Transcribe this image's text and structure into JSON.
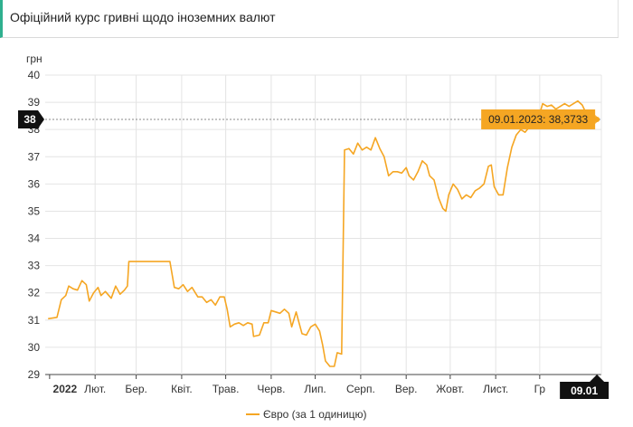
{
  "header": {
    "title": "Офіційний курс гривні щодо іноземних валют"
  },
  "chart_data": {
    "type": "line",
    "ylabel": "грн",
    "ylim": [
      29,
      40
    ],
    "y_ticks": [
      "29",
      "30",
      "31",
      "32",
      "33",
      "34",
      "35",
      "36",
      "37",
      "38",
      "39",
      "40"
    ],
    "x_ticks": [
      {
        "label": "2022",
        "x": "2022-01-01",
        "bold": true
      },
      {
        "label": "Лют.",
        "x": "2022-02-01"
      },
      {
        "label": "Бер.",
        "x": "2022-03-01"
      },
      {
        "label": "Квіт.",
        "x": "2022-04-01"
      },
      {
        "label": "Трав.",
        "x": "2022-05-01"
      },
      {
        "label": "Черв.",
        "x": "2022-06-01"
      },
      {
        "label": "Лип.",
        "x": "2022-07-01"
      },
      {
        "label": "Серп.",
        "x": "2022-08-01"
      },
      {
        "label": "Вер.",
        "x": "2022-09-01"
      },
      {
        "label": "Жовт.",
        "x": "2022-10-01"
      },
      {
        "label": "Лист.",
        "x": "2022-11-01"
      },
      {
        "label": "Гр",
        "x": "2022-12-01"
      }
    ],
    "xlim": [
      "2021-12-29",
      "2023-01-12"
    ],
    "grid": true,
    "legend": "bottom",
    "color": "#f5a623",
    "series": [
      {
        "name": "Євро (за 1 одиницю)",
        "points": [
          [
            "2021-12-31",
            31.05
          ],
          [
            "2022-01-06",
            31.1
          ],
          [
            "2022-01-09",
            31.75
          ],
          [
            "2022-01-12",
            31.9
          ],
          [
            "2022-01-14",
            32.25
          ],
          [
            "2022-01-17",
            32.15
          ],
          [
            "2022-01-20",
            32.1
          ],
          [
            "2022-01-23",
            32.45
          ],
          [
            "2022-01-26",
            32.3
          ],
          [
            "2022-01-28",
            31.7
          ],
          [
            "2022-01-31",
            32.0
          ],
          [
            "2022-02-03",
            32.2
          ],
          [
            "2022-02-05",
            31.9
          ],
          [
            "2022-02-08",
            32.05
          ],
          [
            "2022-02-12",
            31.8
          ],
          [
            "2022-02-15",
            32.25
          ],
          [
            "2022-02-18",
            31.95
          ],
          [
            "2022-02-21",
            32.1
          ],
          [
            "2022-02-23",
            32.25
          ],
          [
            "2022-02-24",
            33.15
          ],
          [
            "2022-03-10",
            33.15
          ],
          [
            "2022-03-24",
            33.15
          ],
          [
            "2022-03-27",
            32.2
          ],
          [
            "2022-03-30",
            32.15
          ],
          [
            "2022-04-02",
            32.3
          ],
          [
            "2022-04-05",
            32.05
          ],
          [
            "2022-04-08",
            32.2
          ],
          [
            "2022-04-12",
            31.85
          ],
          [
            "2022-04-15",
            31.85
          ],
          [
            "2022-04-18",
            31.65
          ],
          [
            "2022-04-21",
            31.75
          ],
          [
            "2022-04-24",
            31.55
          ],
          [
            "2022-04-27",
            31.85
          ],
          [
            "2022-04-30",
            31.85
          ],
          [
            "2022-05-02",
            31.4
          ],
          [
            "2022-05-04",
            30.75
          ],
          [
            "2022-05-07",
            30.85
          ],
          [
            "2022-05-10",
            30.9
          ],
          [
            "2022-05-13",
            30.8
          ],
          [
            "2022-05-16",
            30.9
          ],
          [
            "2022-05-19",
            30.85
          ],
          [
            "2022-05-20",
            30.4
          ],
          [
            "2022-05-24",
            30.45
          ],
          [
            "2022-05-27",
            30.9
          ],
          [
            "2022-05-30",
            30.9
          ],
          [
            "2022-06-01",
            31.35
          ],
          [
            "2022-06-04",
            31.3
          ],
          [
            "2022-06-07",
            31.25
          ],
          [
            "2022-06-10",
            31.4
          ],
          [
            "2022-06-13",
            31.25
          ],
          [
            "2022-06-15",
            30.75
          ],
          [
            "2022-06-18",
            31.3
          ],
          [
            "2022-06-20",
            30.9
          ],
          [
            "2022-06-22",
            30.5
          ],
          [
            "2022-06-25",
            30.45
          ],
          [
            "2022-06-28",
            30.75
          ],
          [
            "2022-07-01",
            30.85
          ],
          [
            "2022-07-04",
            30.6
          ],
          [
            "2022-07-06",
            30.1
          ],
          [
            "2022-07-08",
            29.5
          ],
          [
            "2022-07-11",
            29.3
          ],
          [
            "2022-07-14",
            29.3
          ],
          [
            "2022-07-16",
            29.8
          ],
          [
            "2022-07-19",
            29.75
          ],
          [
            "2022-07-21",
            37.25
          ],
          [
            "2022-07-24",
            37.3
          ],
          [
            "2022-07-27",
            37.1
          ],
          [
            "2022-07-30",
            37.5
          ],
          [
            "2022-08-02",
            37.25
          ],
          [
            "2022-08-05",
            37.35
          ],
          [
            "2022-08-08",
            37.25
          ],
          [
            "2022-08-11",
            37.7
          ],
          [
            "2022-08-14",
            37.3
          ],
          [
            "2022-08-17",
            37.0
          ],
          [
            "2022-08-20",
            36.3
          ],
          [
            "2022-08-23",
            36.45
          ],
          [
            "2022-08-26",
            36.45
          ],
          [
            "2022-08-29",
            36.4
          ],
          [
            "2022-09-01",
            36.6
          ],
          [
            "2022-09-03",
            36.3
          ],
          [
            "2022-09-06",
            36.15
          ],
          [
            "2022-09-09",
            36.45
          ],
          [
            "2022-09-12",
            36.85
          ],
          [
            "2022-09-15",
            36.7
          ],
          [
            "2022-09-17",
            36.3
          ],
          [
            "2022-09-20",
            36.15
          ],
          [
            "2022-09-23",
            35.5
          ],
          [
            "2022-09-26",
            35.1
          ],
          [
            "2022-09-28",
            35.0
          ],
          [
            "2022-09-30",
            35.6
          ],
          [
            "2022-10-03",
            36.0
          ],
          [
            "2022-10-06",
            35.8
          ],
          [
            "2022-10-09",
            35.45
          ],
          [
            "2022-10-12",
            35.6
          ],
          [
            "2022-10-15",
            35.5
          ],
          [
            "2022-10-18",
            35.75
          ],
          [
            "2022-10-21",
            35.85
          ],
          [
            "2022-10-24",
            36.0
          ],
          [
            "2022-10-27",
            36.65
          ],
          [
            "2022-10-29",
            36.7
          ],
          [
            "2022-10-31",
            35.9
          ],
          [
            "2022-11-03",
            35.6
          ],
          [
            "2022-11-06",
            35.6
          ],
          [
            "2022-11-09",
            36.6
          ],
          [
            "2022-11-12",
            37.35
          ],
          [
            "2022-11-15",
            37.8
          ],
          [
            "2022-11-18",
            38.0
          ],
          [
            "2022-11-21",
            37.9
          ],
          [
            "2022-11-24",
            38.1
          ],
          [
            "2022-11-27",
            38.2
          ],
          [
            "2022-11-30",
            38.4
          ],
          [
            "2022-12-03",
            38.95
          ],
          [
            "2022-12-06",
            38.85
          ],
          [
            "2022-12-09",
            38.9
          ],
          [
            "2022-12-12",
            38.75
          ],
          [
            "2022-12-15",
            38.85
          ],
          [
            "2022-12-18",
            38.95
          ],
          [
            "2022-12-21",
            38.85
          ],
          [
            "2022-12-24",
            38.95
          ],
          [
            "2022-12-27",
            39.05
          ],
          [
            "2022-12-30",
            38.9
          ],
          [
            "2023-01-02",
            38.55
          ],
          [
            "2023-01-05",
            38.45
          ],
          [
            "2023-01-09",
            38.3733
          ]
        ]
      }
    ],
    "cursor": {
      "y_label": "38",
      "x_label": "09.01",
      "x": "2023-01-09",
      "y": 38.3733
    },
    "tooltip": {
      "text": "09.01.2023: 38,3733"
    }
  }
}
